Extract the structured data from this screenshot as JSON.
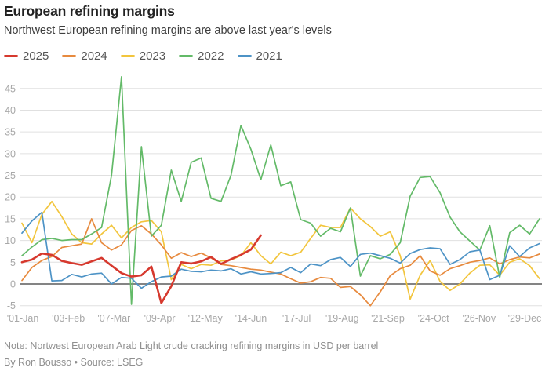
{
  "header": {
    "title": "European refining margins",
    "subtitle": "Northwest European refining margins are above last year's levels"
  },
  "legend": [
    {
      "label": "2025",
      "color": "#d6392e"
    },
    {
      "label": "2024",
      "color": "#e78a3e"
    },
    {
      "label": "2023",
      "color": "#f2c53d"
    },
    {
      "label": "2022",
      "color": "#63ba68"
    },
    {
      "label": "2021",
      "color": "#4d93c6"
    }
  ],
  "chart_data": {
    "type": "line",
    "title": "European refining margins",
    "xlabel": "",
    "ylabel": "USD per barrel",
    "ylim": [
      -7,
      49
    ],
    "grid": true,
    "legend_position": "top",
    "yticks": [
      -5,
      0,
      5,
      10,
      15,
      20,
      25,
      30,
      35,
      40,
      45
    ],
    "xtick_labels": [
      "'01-Jan",
      "'03-Feb",
      "'07-Mar",
      "'09-Apr",
      "'12-May",
      "'14-Jun",
      "'17-Jul",
      "'19-Aug",
      "'21-Sep",
      "'24-Oct",
      "'26-Nov",
      "'29-Dec"
    ],
    "x_unit": "week-of-year",
    "series": [
      {
        "name": "2023",
        "color": "#f2c53d",
        "width": 1.7,
        "values": [
          14,
          9.5,
          16,
          19,
          15.5,
          11.5,
          9.5,
          9.2,
          11.5,
          13.5,
          10.6,
          13,
          14.3,
          14.6,
          12,
          1,
          4.5,
          3.5,
          4.5,
          4.3,
          5.3,
          5.5,
          6.5,
          9.5,
          6.5,
          4.6,
          7.3,
          6.5,
          7.3,
          10.5,
          13.5,
          13,
          13,
          17.5,
          15,
          13.2,
          11,
          12,
          6.5,
          -3.5,
          2,
          5.4,
          0.6,
          -1.5,
          0,
          2.5,
          4.3,
          4.4,
          2,
          5,
          5.8,
          4.2,
          1.2
        ]
      },
      {
        "name": "2024",
        "color": "#e78a3e",
        "width": 1.7,
        "values": [
          0.8,
          3.8,
          5.4,
          6.3,
          8.4,
          8.8,
          9.2,
          15,
          9.5,
          7.8,
          9,
          12.3,
          13.4,
          11.5,
          9,
          5.9,
          7.2,
          6.3,
          7.1,
          6,
          4.5,
          4.2,
          3.8,
          3.4,
          3.2,
          2.7,
          2.3,
          1.2,
          0.2,
          0.5,
          1.5,
          1.3,
          -0.8,
          -0.6,
          -2.5,
          -5,
          -1.8,
          1.9,
          3.5,
          4.3,
          6.5,
          3,
          2,
          3.5,
          4.2,
          5,
          5.4,
          6,
          4.6,
          5.6,
          6.2,
          6,
          6.9
        ]
      },
      {
        "name": "2022",
        "color": "#63ba68",
        "width": 1.7,
        "values": [
          6.5,
          8.5,
          10.2,
          10.5,
          10,
          10.2,
          10.2,
          11.5,
          13,
          25,
          47.7,
          -4.7,
          31.6,
          11,
          13.5,
          26.2,
          19,
          28,
          29,
          19.7,
          19,
          25,
          36.5,
          31,
          24,
          32,
          22.6,
          23.5,
          14.8,
          14,
          11,
          12.8,
          12,
          17.5,
          1.8,
          6.5,
          5.8,
          6.8,
          9.5,
          20.2,
          24.5,
          24.7,
          21,
          15.4,
          12,
          9.9,
          7.8,
          13.4,
          1.5,
          11.8,
          13.5,
          11.5,
          15
        ]
      },
      {
        "name": "2021",
        "color": "#4d93c6",
        "width": 1.7,
        "values": [
          11.7,
          14.5,
          16.5,
          0.7,
          0.8,
          2.2,
          1.6,
          2.3,
          2.5,
          0,
          1.5,
          1.3,
          -1,
          0.5,
          1.6,
          1.8,
          3.4,
          2.9,
          2.8,
          3.2,
          3,
          3.5,
          2.3,
          2.8,
          2.3,
          2.4,
          2.6,
          3.8,
          2.6,
          4.6,
          4.2,
          5.6,
          6.1,
          4,
          6.8,
          7.1,
          6.5,
          5.9,
          4.8,
          7,
          7.9,
          8.3,
          8.1,
          4.5,
          5.6,
          7.4,
          7.8,
          1,
          2,
          8.8,
          6.3,
          8.3,
          9.3
        ]
      },
      {
        "name": "2025",
        "color": "#d6392e",
        "width": 2.6,
        "values": [
          5,
          5.6,
          7,
          6.7,
          5.3,
          4.8,
          4.4,
          5.2,
          6,
          4.2,
          2.5,
          1.7,
          2,
          4,
          -4.4,
          -0.5,
          5,
          4.7,
          5.2,
          6.2,
          4.6,
          5.7,
          6.7,
          7.9,
          11.2
        ]
      }
    ]
  },
  "footer": {
    "note": "Note: Nortwest European Arab Light crude cracking refining margins in USD per barrel",
    "byline": "By Ron Bousso • Source: LSEG"
  }
}
